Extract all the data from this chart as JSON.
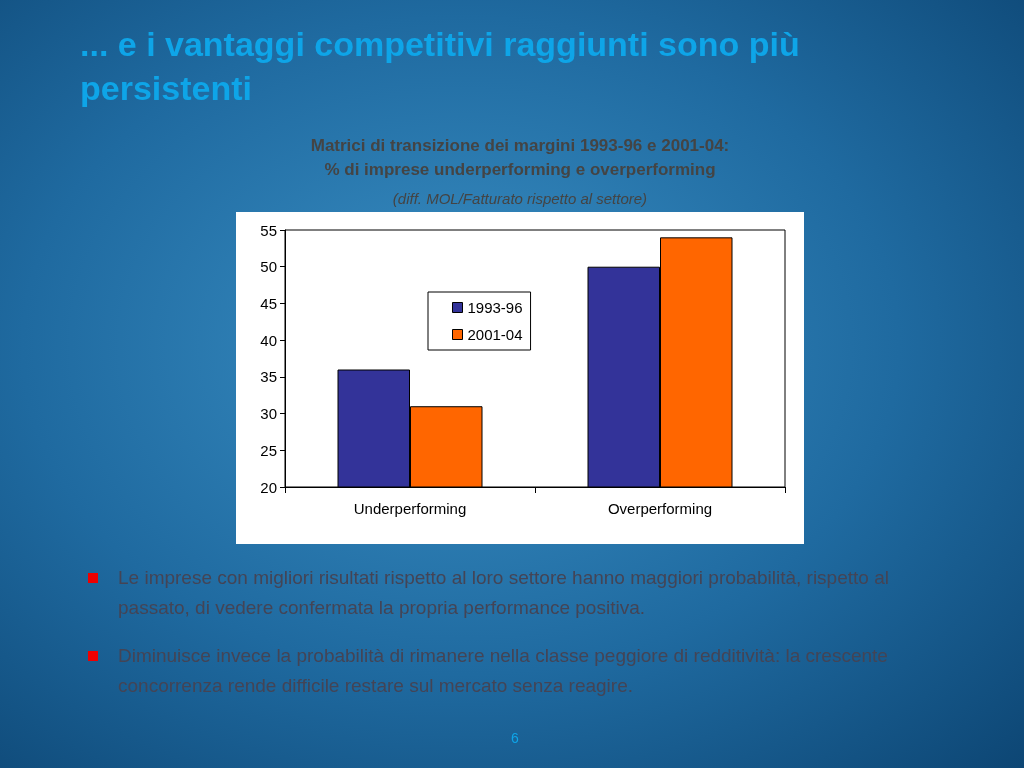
{
  "chart_data": {
    "type": "bar",
    "title": "... e i vantaggi competitivi raggiunti sono più persistenti",
    "subtitle": "Matrici di transizione dei margini 1993-96 e 2001-04:\n% di imprese underperforming e overperforming",
    "annotations": [
      "(diff. MOL/Fatturato rispetto al settore)",
      "Le imprese con migliori risultati rispetto al loro settore hanno maggiori probabilità, rispetto al passato, di vedere confermata la propria performance positiva.",
      "Diminuisce invece la probabilità di rimanere nella classe peggiore di redditività: la crescente concorrenza rende difficile restare sul mercato senza reagire.",
      "6"
    ],
    "categories": [
      "Underperforming",
      "Overperforming"
    ],
    "series": [
      {
        "name": "1993-96",
        "color": "#333399",
        "values": [
          36,
          50
        ]
      },
      {
        "name": "2001-04",
        "color": "#ff6600",
        "values": [
          31,
          54
        ]
      }
    ],
    "ylim": [
      20,
      55
    ],
    "yticks": [
      20,
      25,
      30,
      35,
      40,
      45,
      50,
      55
    ],
    "grid": false,
    "legend": "top"
  }
}
